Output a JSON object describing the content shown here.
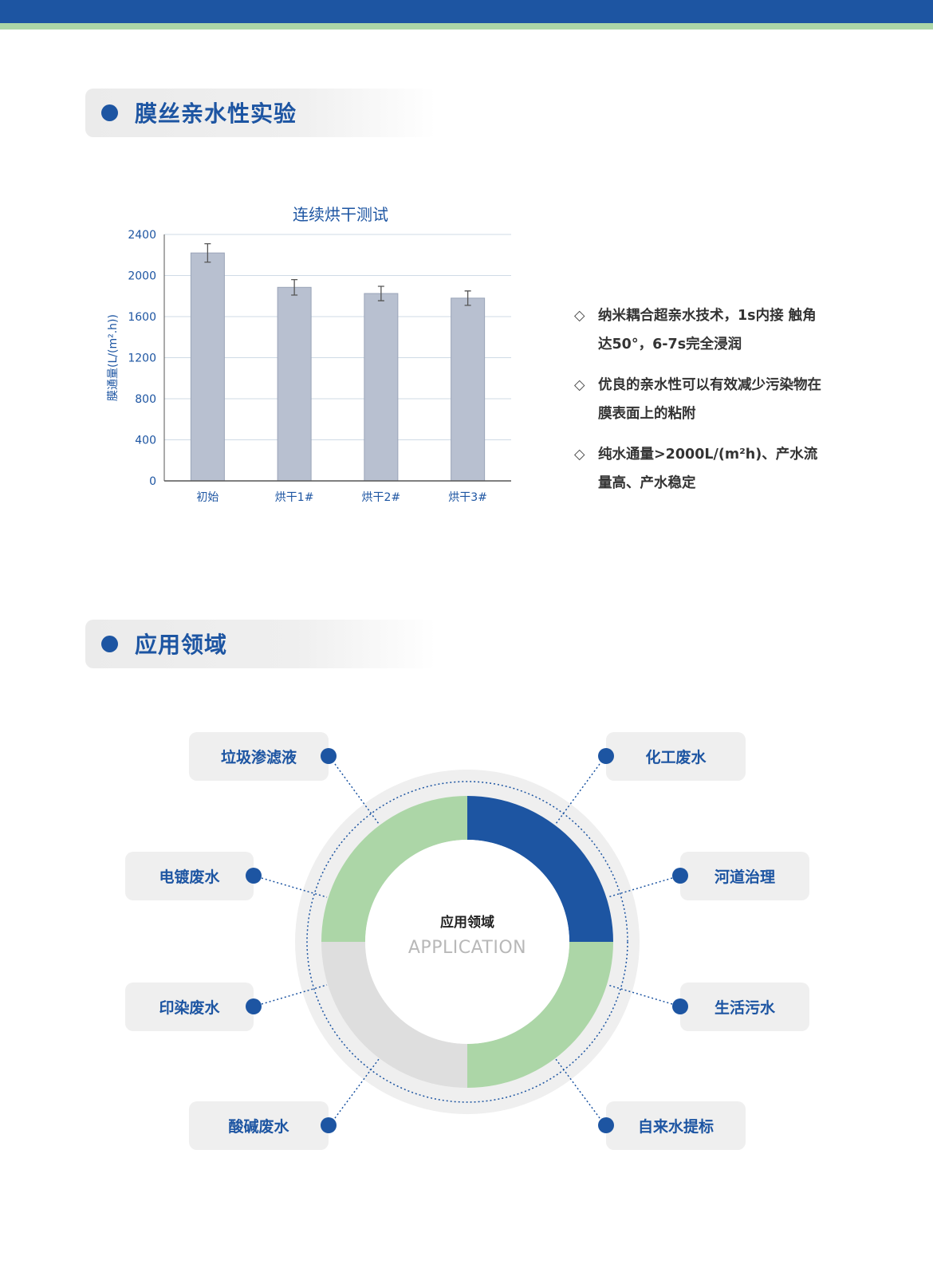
{
  "colors": {
    "brand_blue": "#1d55a2",
    "accent_green": "#acd6a7",
    "bar_fill": "#b8c0d0",
    "ring_gray": "#dedede"
  },
  "section1": {
    "title": "膜丝亲水性实验"
  },
  "chart_data": {
    "type": "bar",
    "title": "连续烘干测试",
    "xlabel": "",
    "ylabel": "膜通量(L/(m².h))",
    "categories": [
      "初始",
      "烘干1#",
      "烘干2#",
      "烘干3#"
    ],
    "values": [
      2220,
      1885,
      1825,
      1780
    ],
    "error": [
      90,
      75,
      70,
      70
    ],
    "ylim": [
      0,
      2400
    ],
    "yticks": [
      0,
      400,
      800,
      1200,
      1600,
      2000,
      2400
    ],
    "grid": true
  },
  "bullets": [
    {
      "icon": "diamond-outline-icon",
      "text": "纳米耦合超亲水技术，1s内接 触角达50°，6-7s完全浸润"
    },
    {
      "icon": "diamond-outline-icon",
      "text": "优良的亲水性可以有效减少污染物在膜表面上的粘附"
    },
    {
      "icon": "diamond-outline-icon",
      "text": "纯水通量>2000L/(m²h)、产水流量高、产水稳定"
    }
  ],
  "section2": {
    "title": "应用领域"
  },
  "application": {
    "center_cn": "应用领域",
    "center_en": "APPLICATION",
    "items": [
      "垃圾渗滤液",
      "化工废水",
      "电镀废水",
      "河道治理",
      "印染废水",
      "生活污水",
      "酸碱废水",
      "自来水提标"
    ]
  }
}
